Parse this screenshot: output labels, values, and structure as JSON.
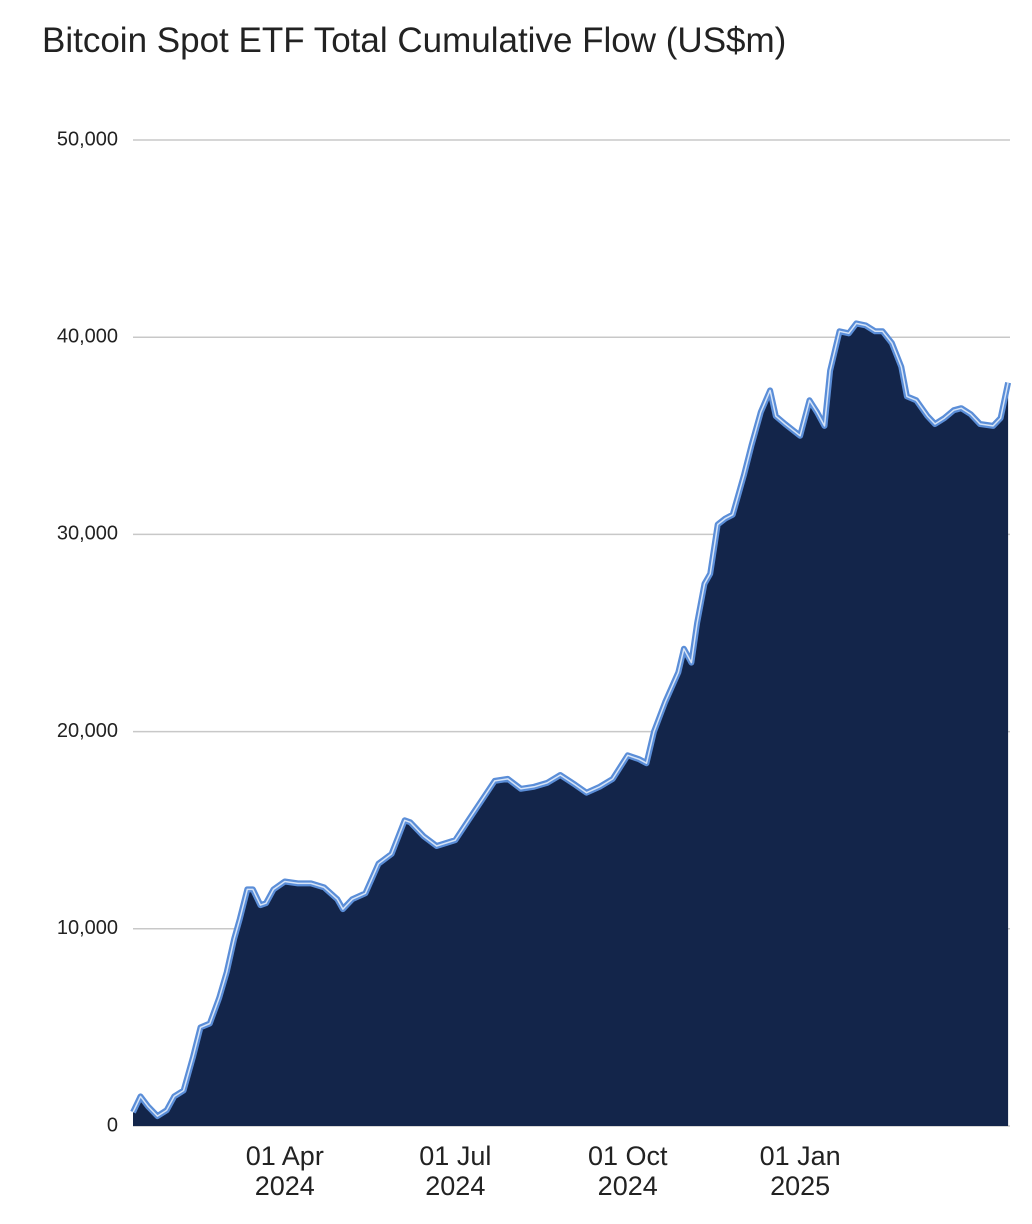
{
  "chart_data": {
    "type": "area",
    "title": "Bitcoin Spot ETF Total Cumulative Flow (US$m)",
    "x": [
      "2024-01-11",
      "2024-01-15",
      "2024-01-19",
      "2024-01-24",
      "2024-01-29",
      "2024-02-02",
      "2024-02-07",
      "2024-02-12",
      "2024-02-16",
      "2024-02-21",
      "2024-02-26",
      "2024-03-01",
      "2024-03-05",
      "2024-03-08",
      "2024-03-12",
      "2024-03-15",
      "2024-03-19",
      "2024-03-22",
      "2024-03-26",
      "2024-04-01",
      "2024-04-08",
      "2024-04-15",
      "2024-04-22",
      "2024-04-29",
      "2024-05-02",
      "2024-05-07",
      "2024-05-14",
      "2024-05-21",
      "2024-05-28",
      "2024-06-04",
      "2024-06-07",
      "2024-06-14",
      "2024-06-21",
      "2024-07-01",
      "2024-07-08",
      "2024-07-15",
      "2024-07-22",
      "2024-07-29",
      "2024-08-05",
      "2024-08-12",
      "2024-08-19",
      "2024-08-26",
      "2024-09-03",
      "2024-09-09",
      "2024-09-16",
      "2024-09-23",
      "2024-10-01",
      "2024-10-07",
      "2024-10-11",
      "2024-10-15",
      "2024-10-21",
      "2024-10-28",
      "2024-10-31",
      "2024-11-04",
      "2024-11-07",
      "2024-11-11",
      "2024-11-14",
      "2024-11-18",
      "2024-11-22",
      "2024-11-26",
      "2024-12-02",
      "2024-12-06",
      "2024-12-11",
      "2024-12-16",
      "2024-12-19",
      "2024-12-24",
      "2025-01-01",
      "2025-01-06",
      "2025-01-10",
      "2025-01-14",
      "2025-01-17",
      "2025-01-22",
      "2025-01-27",
      "2025-01-31",
      "2025-02-05",
      "2025-02-10",
      "2025-02-14",
      "2025-02-19",
      "2025-02-24",
      "2025-02-27",
      "2025-03-04",
      "2025-03-10",
      "2025-03-14",
      "2025-03-19",
      "2025-03-24",
      "2025-03-28",
      "2025-04-02",
      "2025-04-07",
      "2025-04-14",
      "2025-04-18",
      "2025-04-22"
    ],
    "values": [
      700,
      1500,
      1000,
      500,
      800,
      1500,
      1800,
      3500,
      5000,
      5200,
      6500,
      7800,
      9500,
      10500,
      12000,
      12000,
      11200,
      11300,
      12000,
      12400,
      12300,
      12300,
      12100,
      11500,
      11000,
      11500,
      11800,
      13300,
      13800,
      15500,
      15400,
      14700,
      14200,
      14500,
      15500,
      16500,
      17500,
      17600,
      17100,
      17200,
      17400,
      17800,
      17300,
      16900,
      17200,
      17600,
      18800,
      18600,
      18400,
      20000,
      21500,
      23000,
      24200,
      23500,
      25500,
      27500,
      28000,
      30500,
      30800,
      31000,
      33000,
      34500,
      36200,
      37300,
      36000,
      35600,
      35000,
      36800,
      36200,
      35500,
      38300,
      40300,
      40200,
      40700,
      40600,
      40300,
      40300,
      39700,
      38500,
      37000,
      36800,
      36000,
      35600,
      35900,
      36300,
      36400,
      36100,
      35600,
      35500,
      35900,
      37700
    ],
    "color": "#13254a",
    "line_color": "#5b8ed8",
    "xlim": [
      "2024-01-11",
      "2025-04-23"
    ],
    "xticks": [
      {
        "value": "2024-04-01",
        "label": "01 Apr 2024"
      },
      {
        "value": "2024-07-01",
        "label": "01 Jul 2024"
      },
      {
        "value": "2024-10-01",
        "label": "01 Oct 2024"
      },
      {
        "value": "2025-01-01",
        "label": "01 Jan 2025"
      }
    ],
    "ylim": [
      0,
      50000
    ],
    "yticks": [
      0,
      {
        "value": 10000,
        "label": "10,000"
      },
      {
        "value": 20000,
        "label": "20,000"
      },
      {
        "value": 30000,
        "label": "30,000"
      },
      {
        "value": 40000,
        "label": "40,000"
      },
      {
        "value": 50000,
        "label": "50,000"
      }
    ],
    "grid": true
  }
}
